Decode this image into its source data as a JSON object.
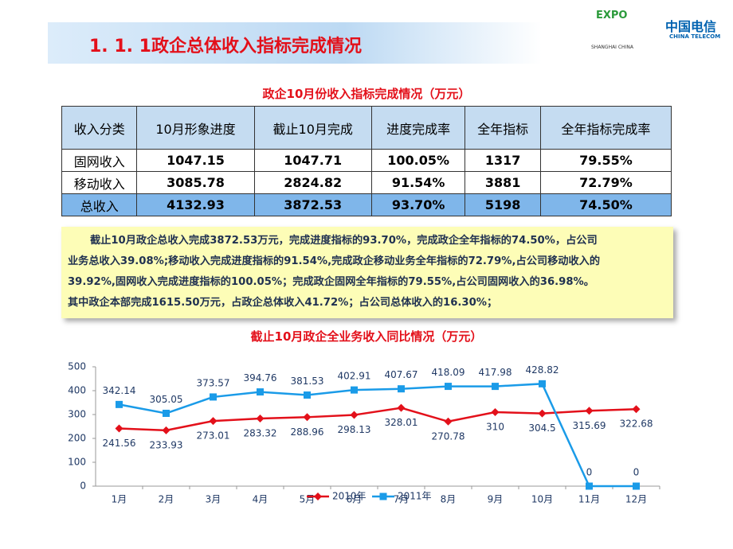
{
  "header": {
    "title": "1. 1. 1政企总体收入指标完成情况",
    "logo": [
      "EXPO",
      "SHANGHAI CHINA",
      "中国电信",
      "CHINA TELECOM"
    ]
  },
  "table": {
    "title": "政企10月份收入指标完成情况（万元）",
    "header": [
      "收入分类",
      "10月形象进度",
      "截止10月完成",
      "进度完成率",
      "全年指标",
      "全年指标完成率"
    ],
    "rows": [
      [
        "固网收入",
        "1047.15",
        "1047.71",
        "100.05%",
        "1317",
        "79.55%"
      ],
      [
        "移动收入",
        "3085.78",
        "2824.82",
        "91.54%",
        "3881",
        "72.79%"
      ],
      [
        "总收入",
        "4132.93",
        "3872.53",
        "93.70%",
        "5198",
        "74.50%"
      ]
    ]
  },
  "note": [
    "截止10月政企总收入完成3872.53万元，完成进度指标的93.70%，完成政企全年指标的74.50%，占公司",
    "业务总收入39.08%;移动收入完成进度指标的91.54%,完成政企移动业务全年指标的72.79%,占公司移动收入的",
    "39.92%,固网收入完成进度指标的100.05%；完成政企固网全年指标的79.55%,占公司固网收入的36.98%。",
    "其中政企本部完成1615.50万元，占政企总体收入41.72%；占公司总体收入的16.30%；"
  ],
  "chart_data": {
    "type": "line",
    "title": "截止10月政企全业务收入同比情况（万元）",
    "categories": [
      "1月",
      "2月",
      "3月",
      "4月",
      "5月",
      "6月",
      "7月",
      "8月",
      "9月",
      "10月",
      "11月",
      "12月"
    ],
    "series": [
      {
        "name": "2010年",
        "color": "#e3101a",
        "marker": "diamond",
        "values": [
          241.56,
          233.93,
          273.01,
          283.32,
          288.96,
          298.13,
          328.01,
          270.78,
          310,
          304.5,
          315.69,
          322.68
        ]
      },
      {
        "name": "2011年",
        "color": "#1a9be8",
        "marker": "square",
        "values": [
          342.14,
          305.05,
          373.57,
          394.76,
          381.53,
          402.91,
          407.67,
          418.09,
          417.98,
          428.82,
          0,
          0
        ]
      }
    ],
    "ylim": [
      0,
      500
    ],
    "yticks": [
      0,
      100,
      200,
      300,
      400,
      500
    ],
    "grid": false,
    "legend": "bottom"
  }
}
